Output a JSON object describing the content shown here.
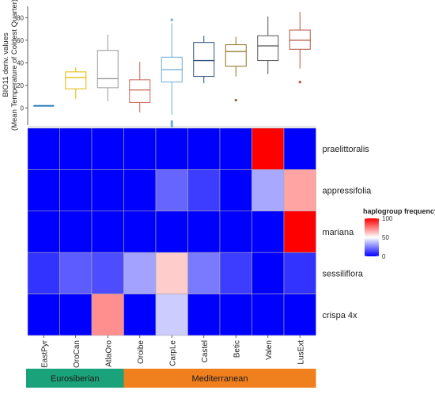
{
  "chart_data": [
    {
      "type": "box",
      "ylabel_line1": "BIO11 deriv. values",
      "ylabel_line2": "(Mean Temperature of Coldest Quarter)",
      "ylim": [
        -15,
        90
      ],
      "yticks": [
        0,
        20,
        40,
        60,
        80
      ],
      "categories": [
        "EastPyr",
        "OroCan",
        "AtlaOro",
        "Oroibe",
        "CarpLe",
        "Castel",
        "Betic",
        "Valen",
        "LusExt"
      ],
      "boxes": [
        {
          "category": "EastPyr",
          "min": 2,
          "q1": 2,
          "median": 2,
          "q3": 2,
          "max": 2,
          "outliers": [],
          "color": "#3182bd"
        },
        {
          "category": "OroCan",
          "min": 8,
          "q1": 17,
          "median": 27,
          "q3": 32,
          "max": 36,
          "outliers": [],
          "color": "#e6b800"
        },
        {
          "category": "AtlaOro",
          "min": 6,
          "q1": 18,
          "median": 26,
          "q3": 51,
          "max": 65,
          "outliers": [],
          "color": "#999999"
        },
        {
          "category": "Oroibe",
          "min": -4,
          "q1": 5,
          "median": 16,
          "q3": 25,
          "max": 41,
          "outliers": [],
          "color": "#cc6655"
        },
        {
          "category": "CarpLe",
          "min": -6,
          "q1": 23,
          "median": 34,
          "q3": 45,
          "max": 75,
          "outliers": [
            78,
            -12,
            -14,
            -16
          ],
          "color": "#6baed6"
        },
        {
          "category": "Castel",
          "min": 22,
          "q1": 28,
          "median": 42,
          "q3": 58,
          "max": 64,
          "outliers": [],
          "color": "#2b4f7a"
        },
        {
          "category": "Betic",
          "min": 28,
          "q1": 37,
          "median": 50,
          "q3": 56,
          "max": 63,
          "outliers": [
            7
          ],
          "color": "#8c6d1f"
        },
        {
          "category": "Valen",
          "min": 30,
          "q1": 42,
          "median": 55,
          "q3": 64,
          "max": 81,
          "outliers": [],
          "color": "#555555"
        },
        {
          "category": "LusExt",
          "min": 35,
          "q1": 52,
          "median": 60,
          "q3": 69,
          "max": 85,
          "outliers": [
            23
          ],
          "color": "#b5533c"
        }
      ]
    },
    {
      "type": "heatmap",
      "x": [
        "EastPyr",
        "OroCan",
        "AtlaOro",
        "Oroibe",
        "CarpLe",
        "Castel",
        "Betic",
        "Valen",
        "LusExt"
      ],
      "y": [
        "praelittoralis",
        "appressifolia",
        "mariana",
        "sessiliflora",
        "crispa 4x"
      ],
      "values": [
        [
          0,
          0,
          0,
          0,
          0,
          0,
          0,
          100,
          0
        ],
        [
          0,
          0,
          0,
          0,
          20,
          12,
          0,
          33,
          68
        ],
        [
          0,
          0,
          0,
          0,
          0,
          0,
          0,
          0,
          100
        ],
        [
          10,
          18,
          15,
          32,
          60,
          24,
          12,
          0,
          10
        ],
        [
          0,
          0,
          72,
          0,
          40,
          0,
          0,
          0,
          0
        ]
      ],
      "legend": {
        "title": "haplogroup frequency",
        "ticks": [
          0,
          50,
          100
        ],
        "min": 0,
        "max": 100,
        "colors": {
          "low": "#0000ff",
          "mid": "#ffffff",
          "high": "#ff0000"
        }
      },
      "groups": [
        {
          "label": "Eurosiberian",
          "span": [
            "EastPyr",
            "OroCan",
            "AtlaOro"
          ],
          "color": "#1aa37a"
        },
        {
          "label": "Mediterranean",
          "span": [
            "Oroibe",
            "CarpLe",
            "Castel",
            "Betic",
            "Valen",
            "LusExt"
          ],
          "color": "#f07f1e"
        }
      ]
    }
  ]
}
